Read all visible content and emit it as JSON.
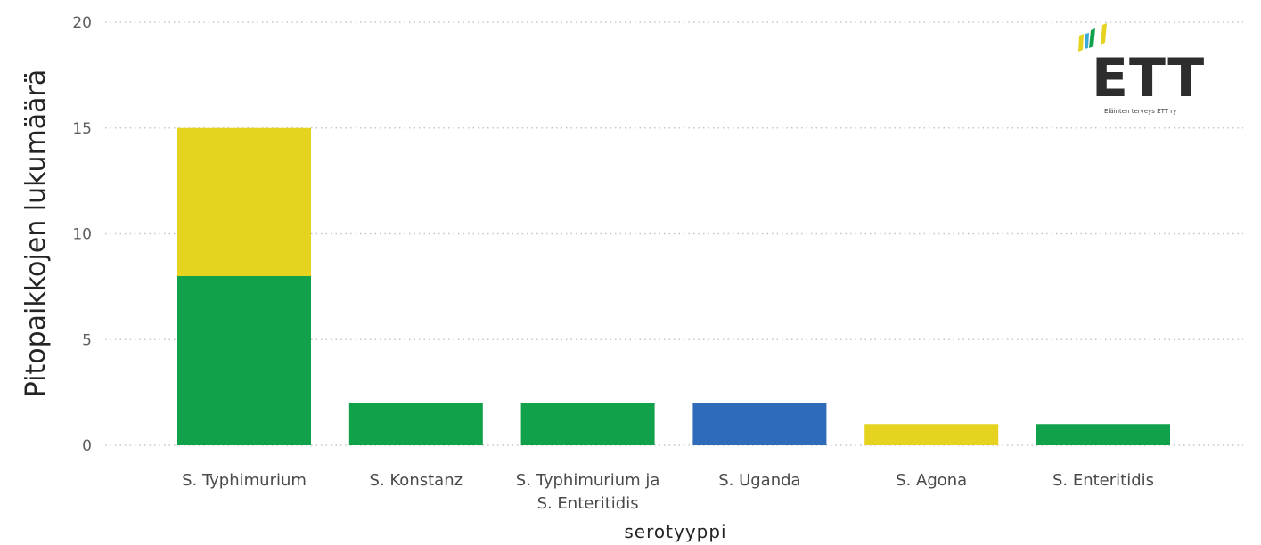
{
  "chart_data": {
    "type": "bar",
    "stacked": true,
    "categories": [
      [
        "S. Typhimurium"
      ],
      [
        "S. Konstanz"
      ],
      [
        "S. Typhimurium ja",
        "S. Enteritidis"
      ],
      [
        "S. Uganda"
      ],
      [
        "S. Agona"
      ],
      [
        "S. Enteritidis"
      ]
    ],
    "series": [
      {
        "color": "#12a14b",
        "values": [
          8,
          2,
          2,
          0,
          0,
          1
        ]
      },
      {
        "color": "#2e6bb8",
        "values": [
          0,
          0,
          0,
          2,
          0,
          0
        ]
      },
      {
        "color": "#e5d31f",
        "values": [
          7,
          0,
          0,
          0,
          1,
          0
        ]
      }
    ],
    "xlabel": "serotyyppi",
    "ylabel": "Pitopaikkojen lukumäärä",
    "ylim": [
      0,
      20
    ],
    "yticks": [
      0,
      5,
      10,
      15,
      20
    ],
    "grid": true,
    "legend": "none"
  },
  "logo": {
    "text": "ETT",
    "subtitle": "Eläinten terveys ETT ry",
    "colors": [
      "#e5d31f",
      "#12a14b",
      "#e5d31f",
      "#3aa9d8"
    ]
  }
}
